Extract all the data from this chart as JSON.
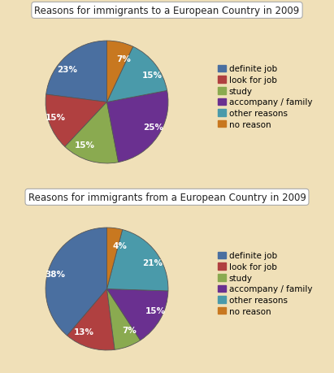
{
  "chart1": {
    "title": "Reasons for immigrants to a European Country in 2009",
    "values": [
      23,
      15,
      15,
      25,
      15,
      7
    ],
    "labels": [
      "23%",
      "15%",
      "15%",
      "25%",
      "15%",
      "7%"
    ],
    "colors": [
      "#4a6fa0",
      "#b04040",
      "#8aaa50",
      "#6a3090",
      "#4a9aaa",
      "#c87820"
    ],
    "startangle": 90
  },
  "chart2": {
    "title": "Reasons for immigrants from a European Country in 2009",
    "values": [
      38,
      13,
      7,
      15,
      21,
      4
    ],
    "labels": [
      "38%",
      "13%",
      "7%",
      "15%",
      "21%",
      "4%"
    ],
    "colors": [
      "#4a6fa0",
      "#b04040",
      "#8aaa50",
      "#6a3090",
      "#4a9aaa",
      "#c87820"
    ],
    "startangle": 90
  },
  "legend_labels": [
    "definite job",
    "look for job",
    "study",
    "accompany / family",
    "other reasons",
    "no reason"
  ],
  "legend_colors": [
    "#4a6fa0",
    "#b04040",
    "#8aaa50",
    "#6a3090",
    "#4a9aaa",
    "#c87820"
  ],
  "bg_color": "#f0e0b8",
  "title_fontsize": 8.5,
  "label_fontsize": 7.5,
  "legend_fontsize": 7.5
}
